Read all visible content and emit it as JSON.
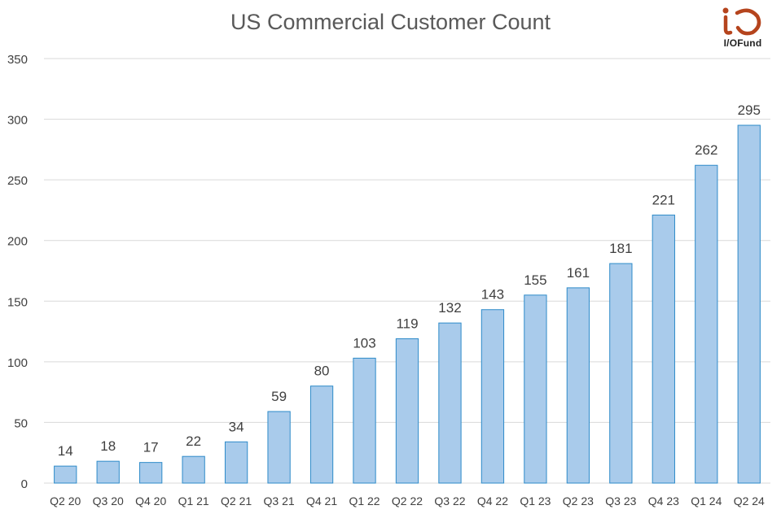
{
  "chart_data": {
    "type": "bar",
    "title": "US Commercial Customer Count",
    "xlabel": "",
    "ylabel": "",
    "ylim": [
      0,
      350
    ],
    "yticks": [
      0,
      50,
      100,
      150,
      200,
      250,
      300,
      350
    ],
    "grid": true,
    "categories": [
      "Q2 20",
      "Q3 20",
      "Q4 20",
      "Q1 21",
      "Q2 21",
      "Q3 21",
      "Q4 21",
      "Q1 22",
      "Q2 22",
      "Q3 22",
      "Q4 22",
      "Q1 23",
      "Q2 23",
      "Q3 23",
      "Q4 23",
      "Q1 24",
      "Q2 24"
    ],
    "values": [
      14,
      18,
      17,
      22,
      34,
      59,
      80,
      103,
      119,
      132,
      143,
      155,
      161,
      181,
      221,
      262,
      295
    ],
    "colors": {
      "bar_fill": "#a9cbeb",
      "bar_stroke": "#2e8bc9",
      "grid": "#d9d9d9",
      "text": "#404040",
      "title": "#595959"
    }
  },
  "logo": {
    "text": "I/OFund",
    "color": "#b5441d"
  }
}
